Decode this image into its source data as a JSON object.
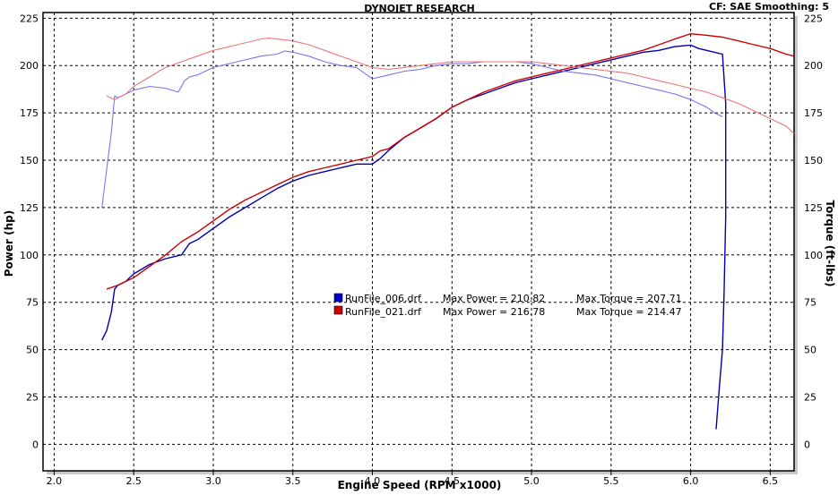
{
  "header": {
    "title": "DYNOJET RESEARCH",
    "info": "CF: SAE  Smoothing: 5"
  },
  "chart_data": {
    "type": "line",
    "title": "DYNOJET RESEARCH",
    "xlabel": "Engine Speed (RPM x1000)",
    "ylabel_left": "Power (hp)",
    "ylabel_right": "Torque (ft-lbs)",
    "xlim": [
      1.93,
      6.65
    ],
    "ylim": [
      -14,
      228
    ],
    "x_ticks": [
      "2.0",
      "2.5",
      "3.0",
      "3.5",
      "4.0",
      "4.5",
      "5.0",
      "5.5",
      "6.0",
      "6.5"
    ],
    "x_tick_values": [
      2.0,
      2.5,
      3.0,
      3.5,
      4.0,
      4.5,
      5.0,
      5.5,
      6.0,
      6.5
    ],
    "y_ticks": [
      "0",
      "25",
      "50",
      "75",
      "100",
      "125",
      "150",
      "175",
      "200",
      "225"
    ],
    "y_tick_values": [
      0,
      25,
      50,
      75,
      100,
      125,
      150,
      175,
      200,
      225
    ],
    "grid": true,
    "legend": {
      "placement": "center",
      "entries": [
        {
          "file": "RunFile_006.drf",
          "power_text": "Max Power = 210.82",
          "torque_text": "Max Torque = 207.71",
          "color": "#0000cc"
        },
        {
          "file": "RunFile_021.drf",
          "power_text": "Max Power = 216.78",
          "torque_text": "Max Torque = 214.47",
          "color": "#cc0000"
        }
      ]
    },
    "series": [
      {
        "name": "RunFile_006.drf",
        "measure": "power",
        "color": "#0000aa",
        "x": [
          2.3,
          2.33,
          2.36,
          2.38,
          2.4,
          2.45,
          2.5,
          2.6,
          2.7,
          2.8,
          2.85,
          2.9,
          3.0,
          3.1,
          3.2,
          3.3,
          3.4,
          3.5,
          3.6,
          3.7,
          3.8,
          3.9,
          4.0,
          4.05,
          4.1,
          4.2,
          4.3,
          4.4,
          4.5,
          4.6,
          4.7,
          4.8,
          4.9,
          5.0,
          5.1,
          5.2,
          5.3,
          5.4,
          5.5,
          5.6,
          5.7,
          5.8,
          5.9,
          6.0,
          6.05,
          6.1,
          6.15,
          6.2,
          6.22,
          6.22,
          6.21,
          6.2,
          6.18,
          6.16
        ],
        "y": [
          55,
          60,
          70,
          82,
          84,
          86,
          90,
          95,
          98,
          100,
          106,
          108,
          114,
          120,
          125,
          130,
          135,
          139,
          142,
          144,
          146,
          148,
          148,
          151,
          155,
          162,
          167,
          172,
          178,
          182,
          185,
          188,
          191,
          193,
          195,
          197,
          199,
          201,
          203,
          205,
          207,
          208,
          210,
          210.8,
          209,
          208,
          207,
          206,
          180,
          120,
          80,
          50,
          30,
          8
        ]
      },
      {
        "name": "RunFile_006.drf",
        "measure": "torque",
        "color": "#7777ee",
        "x": [
          2.3,
          2.33,
          2.36,
          2.38,
          2.4,
          2.5,
          2.6,
          2.7,
          2.78,
          2.82,
          2.85,
          2.9,
          3.0,
          3.1,
          3.2,
          3.3,
          3.4,
          3.45,
          3.5,
          3.6,
          3.7,
          3.8,
          3.9,
          3.95,
          4.0,
          4.1,
          4.2,
          4.3,
          4.4,
          4.5,
          4.6,
          4.7,
          4.8,
          4.9,
          5.0,
          5.1,
          5.2,
          5.3,
          5.4,
          5.5,
          5.6,
          5.7,
          5.8,
          5.9,
          6.0,
          6.1,
          6.15,
          6.2
        ],
        "y": [
          125,
          145,
          165,
          184,
          183,
          187,
          189,
          188,
          186,
          192,
          194,
          195,
          199,
          201,
          203,
          205,
          206,
          207.7,
          207,
          205,
          202,
          200,
          199,
          196,
          193,
          195,
          197,
          198,
          200,
          201,
          201,
          202,
          202,
          202,
          201,
          199,
          197,
          196,
          195,
          193,
          191,
          189,
          187,
          185,
          182,
          178,
          175,
          173
        ]
      },
      {
        "name": "RunFile_021.drf",
        "measure": "power",
        "color": "#cc0000",
        "x": [
          2.33,
          2.4,
          2.45,
          2.5,
          2.6,
          2.7,
          2.8,
          2.9,
          3.0,
          3.1,
          3.2,
          3.3,
          3.4,
          3.5,
          3.6,
          3.7,
          3.8,
          3.9,
          4.0,
          4.05,
          4.1,
          4.2,
          4.3,
          4.4,
          4.5,
          4.6,
          4.7,
          4.8,
          4.9,
          5.0,
          5.1,
          5.2,
          5.3,
          5.4,
          5.5,
          5.6,
          5.7,
          5.8,
          5.9,
          6.0,
          6.1,
          6.2,
          6.3,
          6.4,
          6.5,
          6.6,
          6.65
        ],
        "y": [
          82,
          84,
          86,
          88,
          94,
          100,
          107,
          112,
          118,
          124,
          129,
          133,
          137,
          141,
          144,
          146,
          148,
          150,
          152,
          155,
          156,
          162,
          167,
          172,
          178,
          182,
          186,
          189,
          192,
          194,
          196,
          198,
          200,
          202,
          204,
          206,
          208,
          211,
          214,
          216.8,
          216,
          215,
          213,
          211,
          209,
          206,
          205
        ]
      },
      {
        "name": "RunFile_021.drf",
        "measure": "torque",
        "color": "#ee7777",
        "x": [
          2.33,
          2.38,
          2.45,
          2.5,
          2.6,
          2.7,
          2.8,
          2.9,
          3.0,
          3.1,
          3.2,
          3.3,
          3.35,
          3.4,
          3.5,
          3.6,
          3.7,
          3.8,
          3.9,
          4.0,
          4.1,
          4.2,
          4.3,
          4.4,
          4.5,
          4.6,
          4.7,
          4.8,
          4.9,
          5.0,
          5.1,
          5.2,
          5.3,
          5.4,
          5.5,
          5.6,
          5.7,
          5.8,
          5.9,
          6.0,
          6.1,
          6.2,
          6.3,
          6.4,
          6.5,
          6.6,
          6.65
        ],
        "y": [
          184,
          182,
          185,
          189,
          194,
          199,
          202,
          205,
          208,
          210,
          212,
          214,
          214.5,
          214,
          213,
          211,
          208,
          205,
          202,
          199,
          198,
          199,
          200,
          201,
          202,
          202,
          202,
          202,
          202,
          202,
          201,
          200,
          199,
          198,
          197,
          196,
          194,
          192,
          190,
          188,
          186,
          183,
          180,
          176,
          172,
          168,
          164
        ]
      }
    ]
  }
}
